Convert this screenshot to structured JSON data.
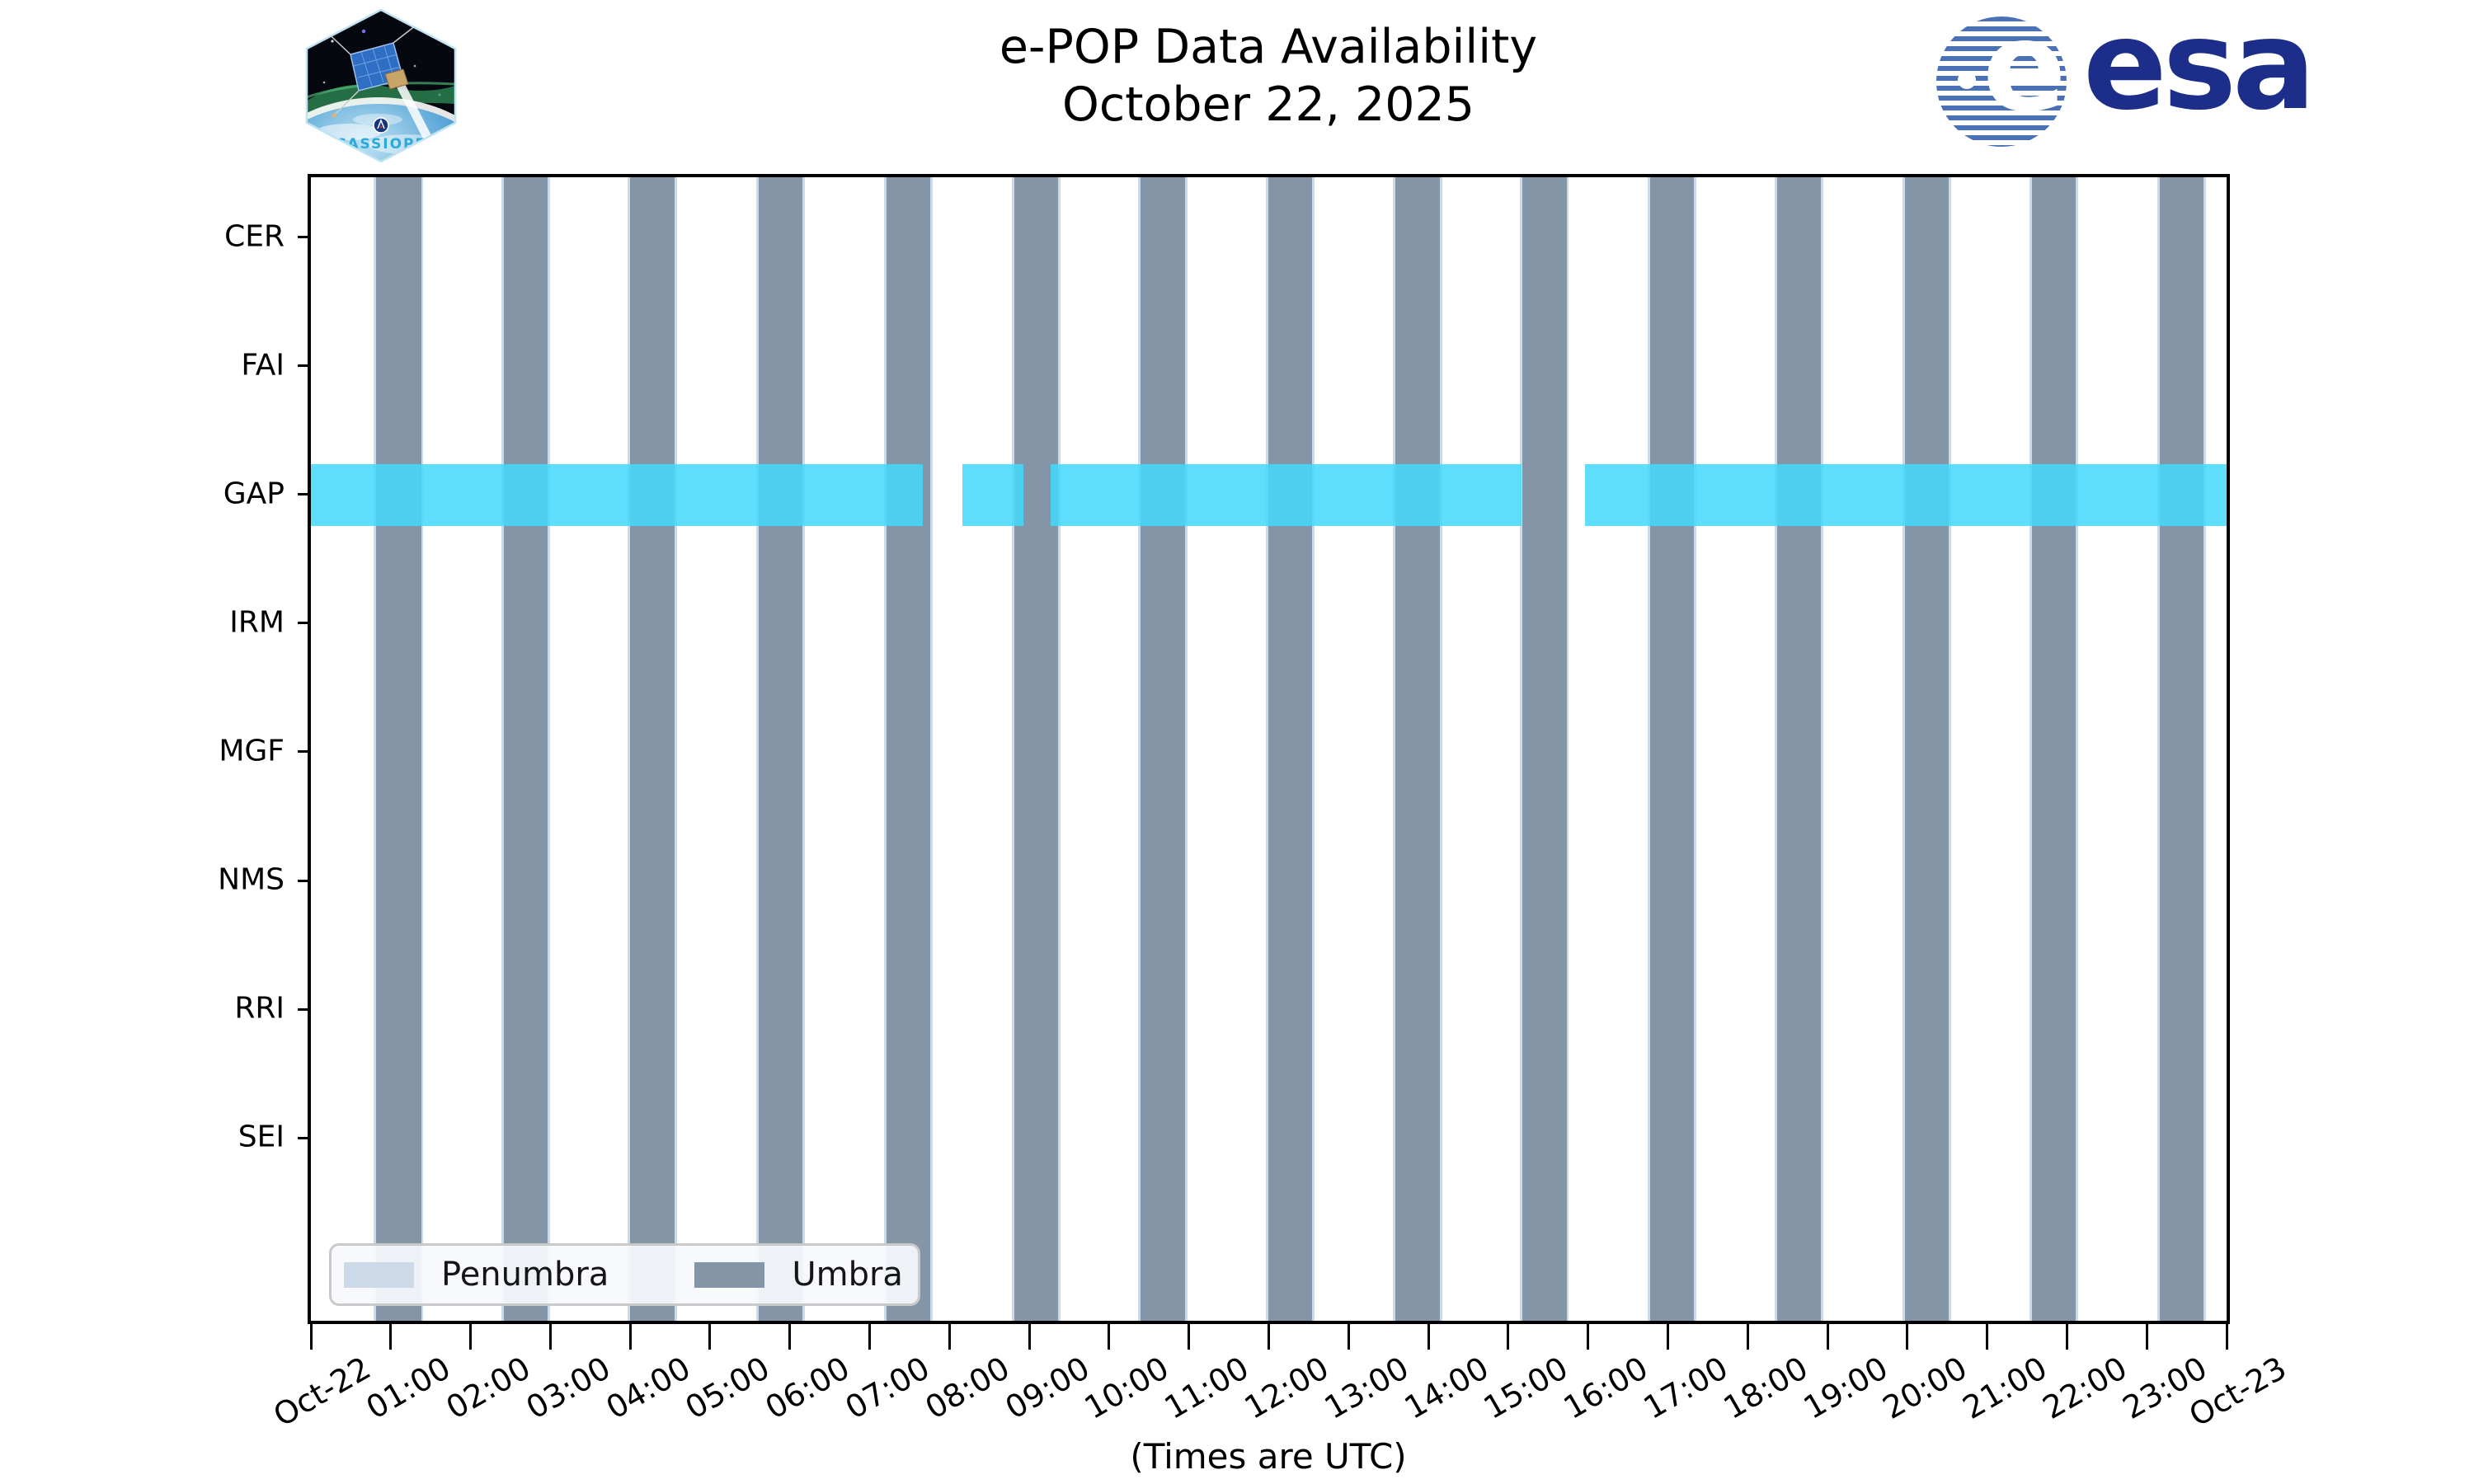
{
  "header": {
    "title_line1": "e-POP Data Availability",
    "title_line2": "October 22, 2025",
    "cassiope_patch_text": "CASSIOPE",
    "esa_logo_text": "esa",
    "esa_globe_e": "e"
  },
  "legend": {
    "penumbra_label": "Penumbra",
    "umbra_label": "Umbra"
  },
  "colors": {
    "umbra": "#8595a8",
    "penumbra": "#ccd9e8",
    "gap_fill": "#44d8fa",
    "gap_opacity": 0.86,
    "spine": "#000000",
    "esa_blue": "#1c2e8a",
    "esa_stripe_blue": "#4a71b5",
    "cassiope_text_color": "#2aa9dc"
  },
  "chart_data": {
    "type": "bar",
    "subtype": "availability-timeline",
    "title": "e-POP Data Availability",
    "subtitle": "October 22, 2025",
    "xlabel": "(Times are UTC)",
    "x_axis": {
      "unit": "hours UTC",
      "min": 0,
      "max": 24,
      "tick_interval_hours": 1
    },
    "x_tick_labels": [
      "Oct-22",
      "01:00",
      "02:00",
      "03:00",
      "04:00",
      "05:00",
      "06:00",
      "07:00",
      "08:00",
      "09:00",
      "10:00",
      "11:00",
      "12:00",
      "13:00",
      "14:00",
      "15:00",
      "16:00",
      "17:00",
      "18:00",
      "19:00",
      "20:00",
      "21:00",
      "22:00",
      "23:00",
      "Oct-23"
    ],
    "instruments": [
      "CER",
      "FAI",
      "GAP",
      "IRM",
      "MGF",
      "NMS",
      "RRI",
      "SEI"
    ],
    "umbra_periods_hours": [
      [
        0.82,
        1.38
      ],
      [
        2.42,
        2.97
      ],
      [
        4.0,
        4.56
      ],
      [
        5.61,
        6.16
      ],
      [
        7.21,
        7.76
      ],
      [
        8.81,
        9.36
      ],
      [
        10.39,
        10.95
      ],
      [
        11.99,
        12.54
      ],
      [
        13.59,
        14.14
      ],
      [
        15.18,
        15.73
      ],
      [
        16.78,
        17.33
      ],
      [
        18.37,
        18.92
      ],
      [
        19.97,
        20.52
      ],
      [
        21.56,
        22.11
      ],
      [
        23.16,
        23.71
      ]
    ],
    "penumbra_edge_hours": 0.03,
    "data_availability": [
      {
        "instrument": "GAP",
        "segments_hours": [
          [
            0.0,
            7.67
          ],
          [
            8.16,
            8.93
          ],
          [
            9.27,
            15.17
          ],
          [
            15.96,
            24.0
          ]
        ]
      }
    ],
    "legend_entries": [
      "Penumbra",
      "Umbra"
    ],
    "legend_position": "lower left",
    "grid": false
  }
}
